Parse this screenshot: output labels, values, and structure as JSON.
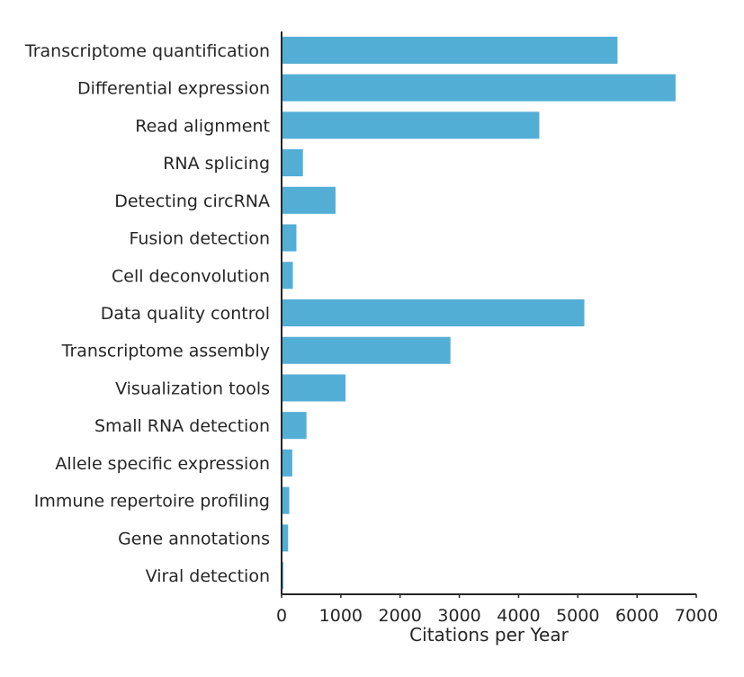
{
  "chart_data": {
    "type": "bar",
    "orientation": "horizontal",
    "categories": [
      "Transcriptome quantification",
      "Differential expression",
      "Read alignment",
      "RNA splicing",
      "Detecting circRNA",
      "Fusion detection",
      "Cell deconvolution",
      "Data quality control",
      "Transcriptome assembly",
      "Visualization tools",
      "Small RNA detection",
      "Allele specific expression",
      "Immune repertoire profiling",
      "Gene annotations",
      "Viral detection"
    ],
    "values": [
      5670,
      6650,
      4350,
      360,
      910,
      250,
      190,
      5110,
      2850,
      1080,
      420,
      180,
      130,
      110,
      30
    ],
    "xlabel": "Citations per Year",
    "ylabel": "",
    "title": "",
    "xlim": [
      0,
      7000
    ],
    "xticks": [
      0,
      1000,
      2000,
      3000,
      4000,
      5000,
      6000,
      7000
    ],
    "bar_color": "#53aed6",
    "axis_color": "#262626",
    "grid": false
  }
}
